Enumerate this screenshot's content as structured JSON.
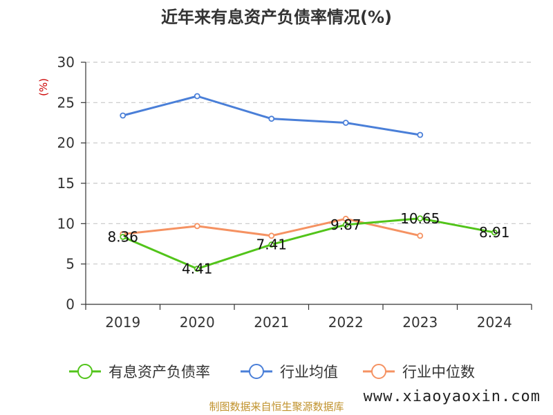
{
  "colors": {
    "series_0": "#52c41a",
    "series_1": "#4a7fd8",
    "series_2": "#f59262",
    "unit": "#cc0000",
    "source": "#c0922c",
    "grid": "#c8c8c8",
    "axis": "#333333"
  },
  "chart_data": {
    "type": "line",
    "title": "近年来有息资产负债率情况(%)",
    "ylabel": "(%)",
    "ylim": [
      0,
      30
    ],
    "yticks": [
      "0",
      "5",
      "10",
      "15",
      "20",
      "25",
      "30"
    ],
    "categories": [
      "2019",
      "2020",
      "2021",
      "2022",
      "2023",
      "2024"
    ],
    "grid": "horizontal dashed",
    "legend_position": "bottom",
    "series": [
      {
        "name": "有息资产负债率",
        "values": [
          8.36,
          4.41,
          7.41,
          9.87,
          10.65,
          8.91
        ],
        "labels": [
          "8.36",
          "4.41",
          "7.41",
          "9.87",
          "10.65",
          "8.91"
        ]
      },
      {
        "name": "行业均值",
        "values": [
          23.4,
          25.8,
          23.0,
          22.5,
          21.0,
          null
        ]
      },
      {
        "name": "行业中位数",
        "values": [
          8.7,
          9.7,
          8.5,
          10.6,
          8.5,
          null
        ]
      }
    ]
  },
  "source_text": "制图数据来自恒生聚源数据库",
  "watermark_text": "www.xiaoyaoxin.com"
}
